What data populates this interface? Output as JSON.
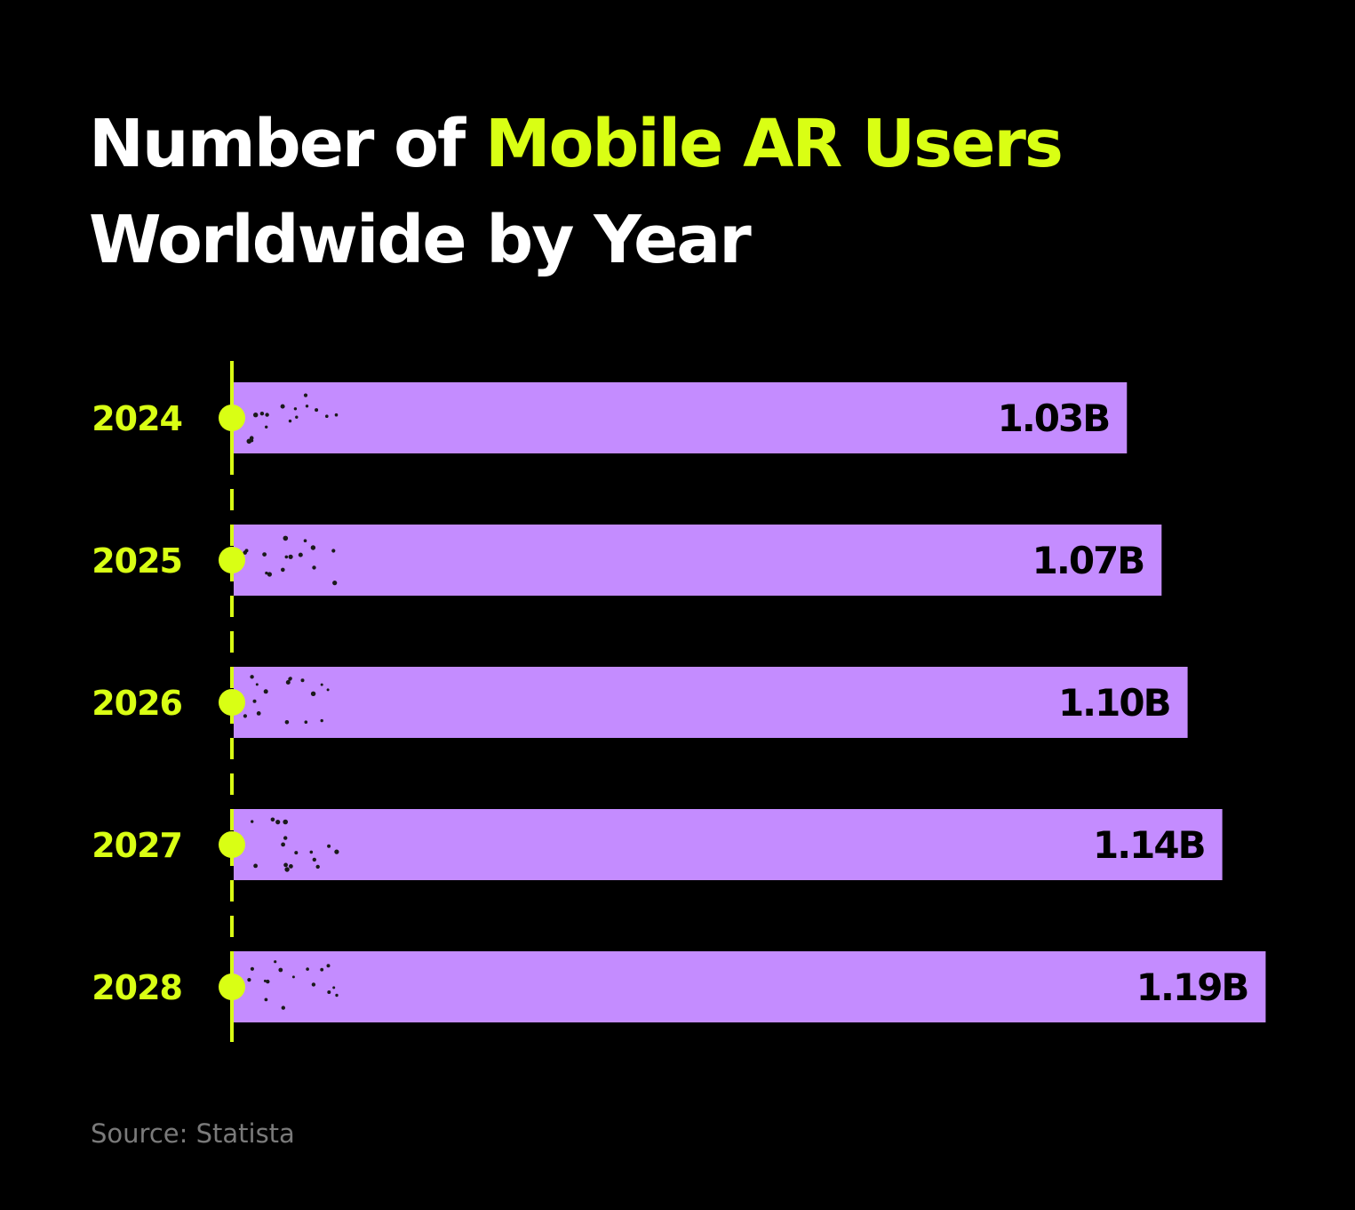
{
  "title": {
    "part1": "Number of ",
    "highlight": "Mobile AR Users",
    "line2": "Worldwide by Year"
  },
  "source": "Source: Statista",
  "colors": {
    "background": "#000000",
    "title": "#ffffff",
    "accent": "#d9ff14",
    "bar": "#c48cff",
    "bar_label": "#000000",
    "source": "#7a7a7a"
  },
  "chart_data": {
    "type": "bar",
    "orientation": "horizontal",
    "categories": [
      "2024",
      "2025",
      "2026",
      "2027",
      "2028"
    ],
    "values": [
      1.03,
      1.07,
      1.1,
      1.14,
      1.19
    ],
    "value_labels": [
      "1.03B",
      "1.07B",
      "1.10B",
      "1.14B",
      "1.19B"
    ],
    "unit": "billion users",
    "title": "Number of Mobile AR Users Worldwide by Year",
    "xlabel": "",
    "ylabel": "",
    "grid": false
  }
}
